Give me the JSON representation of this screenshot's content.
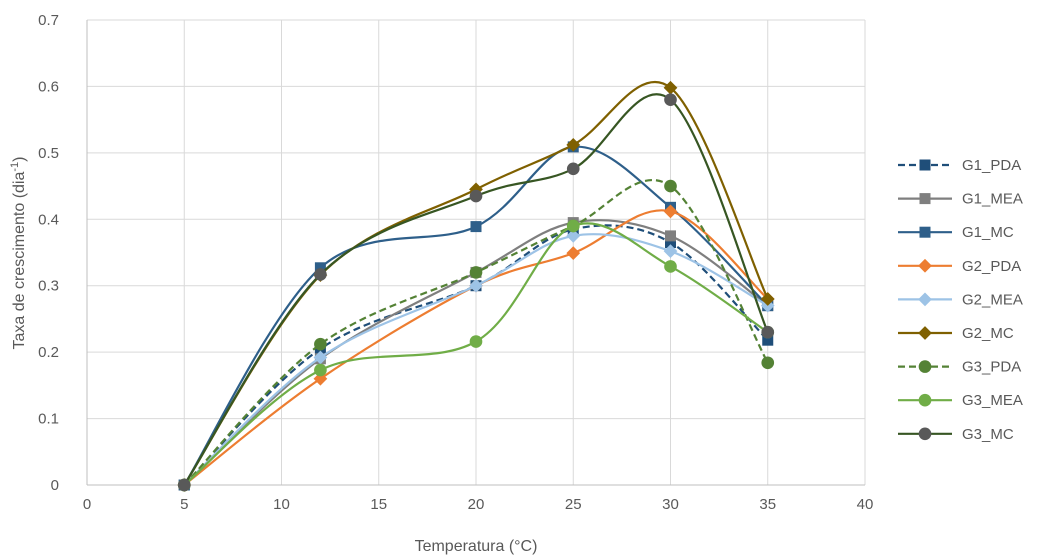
{
  "chart_data": {
    "type": "scatter",
    "title": "",
    "xlabel": "Temperatura (°C)",
    "ylabel_main": "Taxa de crescimento (dia",
    "ylabel_sup": "-1",
    "ylabel_end": ")",
    "xlim": [
      0,
      40
    ],
    "ylim": [
      0,
      0.7
    ],
    "x_ticks": [
      "0",
      "5",
      "10",
      "15",
      "20",
      "25",
      "30",
      "35",
      "40"
    ],
    "y_ticks": [
      "0",
      "0.1",
      "0.2",
      "0.3",
      "0.4",
      "0.5",
      "0.6",
      "0.7"
    ],
    "grid": true,
    "legend_position": "right",
    "x": [
      5,
      12,
      20,
      25,
      30,
      35
    ],
    "series": [
      {
        "name": "G1_PDA",
        "values": [
          0,
          0.205,
          0.3,
          0.385,
          0.365,
          0.218
        ],
        "color": "#1f4e79",
        "marker": "square",
        "dashed": true
      },
      {
        "name": "G1_MEA",
        "values": [
          0,
          0.19,
          0.32,
          0.395,
          0.375,
          0.27
        ],
        "color": "#7f7f7f",
        "marker": "square",
        "dashed": false
      },
      {
        "name": "G1_MC",
        "values": [
          0,
          0.327,
          0.389,
          0.509,
          0.418,
          0.27
        ],
        "color": "#2e5f8a",
        "marker": "square",
        "dashed": false
      },
      {
        "name": "G2_PDA",
        "values": [
          0,
          0.16,
          0.3,
          0.349,
          0.412,
          0.28
        ],
        "color": "#ed7d31",
        "marker": "diamond",
        "dashed": false
      },
      {
        "name": "G2_MEA",
        "values": [
          0,
          0.192,
          0.3,
          0.375,
          0.352,
          0.27
        ],
        "color": "#9dc3e6",
        "marker": "diamond",
        "dashed": false
      },
      {
        "name": "G2_MC",
        "values": [
          0,
          0.316,
          0.445,
          0.512,
          0.598,
          0.28
        ],
        "color": "#7f6000",
        "marker": "diamond",
        "dashed": false
      },
      {
        "name": "G3_PDA",
        "values": [
          0,
          0.212,
          0.32,
          0.39,
          0.45,
          0.184
        ],
        "color": "#548235",
        "marker": "circle",
        "dashed": true
      },
      {
        "name": "G3_MEA",
        "values": [
          0,
          0.173,
          0.216,
          0.39,
          0.329,
          0.23
        ],
        "color": "#70ad47",
        "marker": "circle",
        "dashed": false
      },
      {
        "name": "G3_MC",
        "values": [
          0,
          0.317,
          0.435,
          0.476,
          0.58,
          0.23
        ],
        "color": "#375623",
        "marker": "circle",
        "dashed": false
      }
    ],
    "marker_colors": {
      "G3_MC": "#595959"
    }
  }
}
